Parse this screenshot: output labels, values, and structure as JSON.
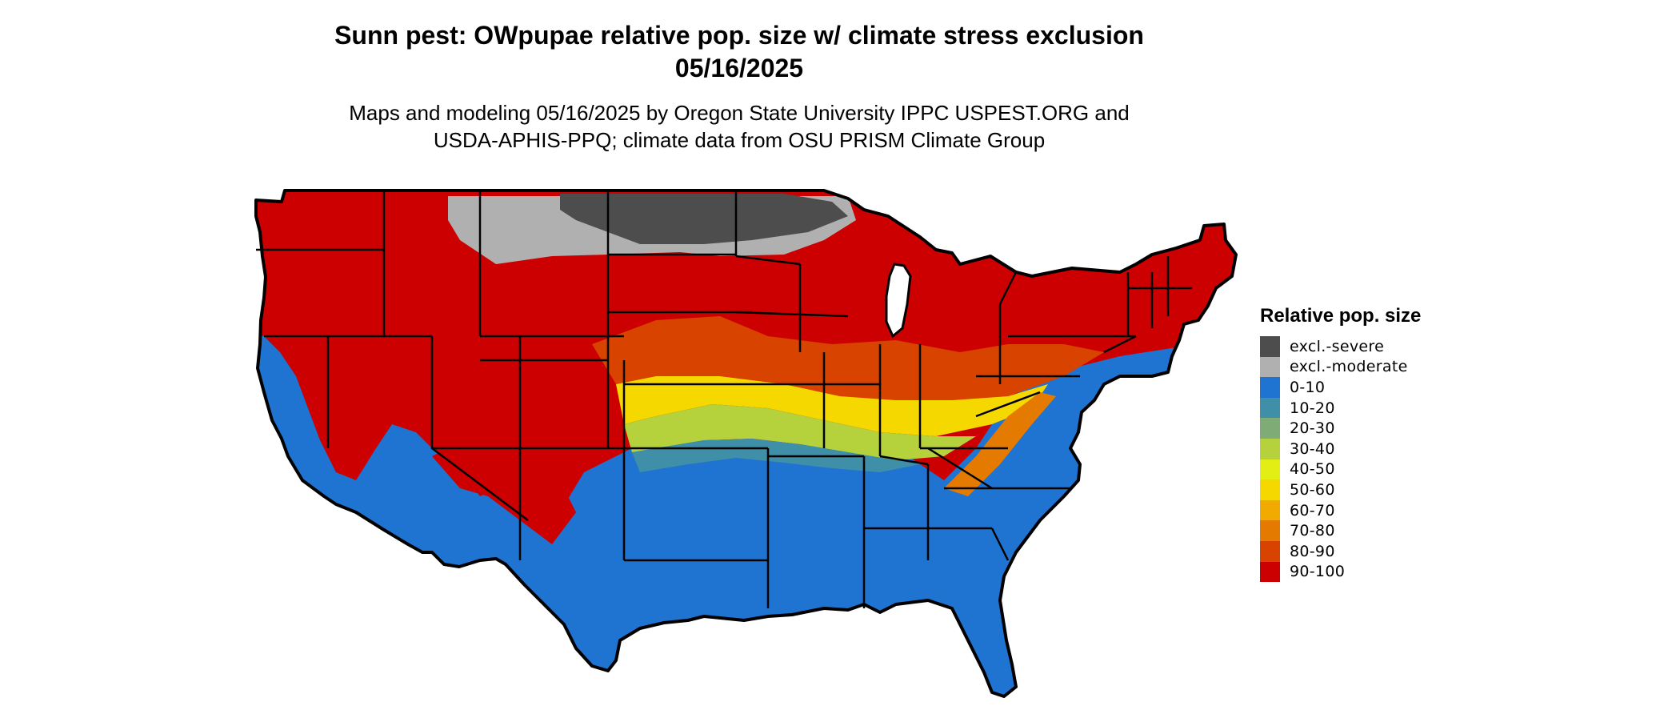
{
  "title_line1": "Sunn pest: OWpupae relative pop. size w/ climate stress exclusion",
  "title_line2": "05/16/2025",
  "subtitle_line1": "Maps and modeling 05/16/2025 by Oregon State University IPPC USPEST.ORG and",
  "subtitle_line2": "USDA-APHIS-PPQ; climate data from OSU PRISM Climate Group",
  "legend": {
    "title": "Relative pop. size",
    "items": [
      {
        "label": "excl.-severe",
        "color": "#4d4d4d"
      },
      {
        "label": "excl.-moderate",
        "color": "#b0b0b0"
      },
      {
        "label": "0-10",
        "color": "#1f74d1"
      },
      {
        "label": "10-20",
        "color": "#3f8fa8"
      },
      {
        "label": "20-30",
        "color": "#7fab76"
      },
      {
        "label": "30-40",
        "color": "#b5d13c"
      },
      {
        "label": "40-50",
        "color": "#e2ee14"
      },
      {
        "label": "50-60",
        "color": "#f5d800"
      },
      {
        "label": "60-70",
        "color": "#f0aa00"
      },
      {
        "label": "70-80",
        "color": "#e57a00"
      },
      {
        "label": "80-90",
        "color": "#d84300"
      },
      {
        "label": "90-100",
        "color": "#cc0000"
      }
    ]
  },
  "colors": {
    "outline": "#000000",
    "severe": "#4d4d4d",
    "moderate": "#b0b0b0",
    "low": "#1f74d1",
    "high": "#cc0000"
  }
}
